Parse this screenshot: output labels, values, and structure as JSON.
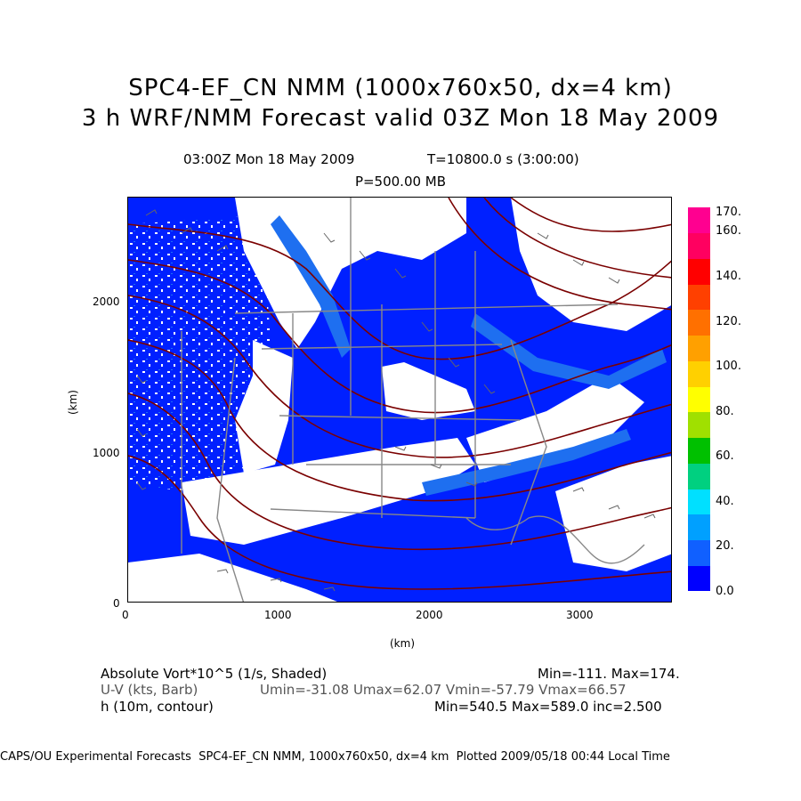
{
  "title": {
    "line1": "SPC4-EF_CN NMM (1000x760x50, dx=4 km)",
    "line2": "3 h WRF/NMM Forecast valid 03Z Mon 18 May 2009"
  },
  "subtitle": {
    "time": "03:00Z Mon 18 May 2009",
    "elapsed": "T=10800.0 s (3:00:00)",
    "level": "P=500.00 MB"
  },
  "axes": {
    "x_label": "(km)",
    "y_label": "(km)",
    "x_ticks": [
      "0",
      "1000",
      "2000",
      "3000"
    ],
    "y_ticks": [
      "0",
      "1000",
      "2000"
    ]
  },
  "colorbar": {
    "labels": [
      "170.",
      "160.",
      "140.",
      "120.",
      "100.",
      "80.",
      "60.",
      "40.",
      "20.",
      "0.0"
    ],
    "colors": [
      "#0000ff",
      "#1060ff",
      "#00a0ff",
      "#00e0ff",
      "#00d080",
      "#00c000",
      "#a0e000",
      "#ffff00",
      "#ffd000",
      "#ffa000",
      "#ff7000",
      "#ff4000",
      "#ff0000",
      "#ff0060",
      "#ff0090"
    ]
  },
  "legend": {
    "vort_label": "Absolute Vort*10^5 (1/s, Shaded)",
    "vort_stats": "Min=-111. Max=174.",
    "wind_label": "U-V (kts, Barb)",
    "wind_stats": "Umin=-31.08 Umax=62.07 Vmin=-57.79 Vmax=66.57",
    "height_label": "h (10m, contour)",
    "height_stats": "Min=540.5 Max=589.0 inc=2.500"
  },
  "caption": "CAPS/OU Experimental Forecasts  SPC4-EF_CN NMM, 1000x760x50, dx=4 km  Plotted 2009/05/18 00:44 Local Time",
  "map_colors": {
    "vorticity_fill": "#0020ff",
    "vorticity_mid": "#1e6ff0",
    "contour": "#7a0000",
    "boundaries": "#888888",
    "barbs": "#666666"
  }
}
